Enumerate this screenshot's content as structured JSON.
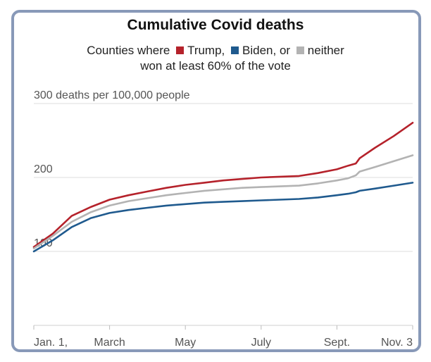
{
  "chart_data": {
    "type": "line",
    "title": "Cumulative Covid deaths",
    "subtitle_prefix": "Counties where",
    "subtitle_line2": "won at least 60% of the vote",
    "ylabel": "deaths per 100,000 people",
    "ylim": [
      0,
      300
    ],
    "yticks": [
      {
        "value": 0,
        "label": ""
      },
      {
        "value": 100,
        "label": "100"
      },
      {
        "value": 200,
        "label": "200"
      },
      {
        "value": 300,
        "label": "300 deaths per 100,000 people"
      }
    ],
    "xlim": [
      0,
      10
    ],
    "xticks": [
      {
        "value": 0,
        "label": "Jan. 1,"
      },
      {
        "value": 2,
        "label": "March"
      },
      {
        "value": 4,
        "label": "May"
      },
      {
        "value": 6,
        "label": "July"
      },
      {
        "value": 8,
        "label": "Sept."
      },
      {
        "value": 10,
        "label": "Nov. 3"
      }
    ],
    "x": [
      0,
      0.5,
      1,
      1.5,
      2,
      2.5,
      3,
      3.5,
      4,
      4.5,
      5,
      5.5,
      6,
      6.5,
      7,
      7.5,
      8,
      8.3,
      8.5,
      8.6,
      9,
      9.5,
      10
    ],
    "series": [
      {
        "name": "Trump,",
        "color": "#b5222b",
        "values": [
          106,
          124,
          148,
          160,
          170,
          176,
          181,
          186,
          190,
          193,
          196,
          198,
          200,
          201,
          202,
          206,
          211,
          216,
          219,
          226,
          240,
          256,
          274
        ]
      },
      {
        "name": "Biden, or",
        "color": "#1f5a8e",
        "values": [
          100,
          115,
          133,
          145,
          152,
          156,
          159,
          162,
          164,
          166,
          167,
          168,
          169,
          170,
          171,
          173,
          176,
          178,
          180,
          182,
          185,
          189,
          193
        ]
      },
      {
        "name": "neither",
        "color": "#b3b3b3",
        "values": [
          104,
          121,
          140,
          153,
          162,
          168,
          172,
          176,
          179,
          182,
          184,
          186,
          187,
          188,
          189,
          192,
          196,
          199,
          203,
          208,
          214,
          222,
          230
        ]
      }
    ]
  }
}
